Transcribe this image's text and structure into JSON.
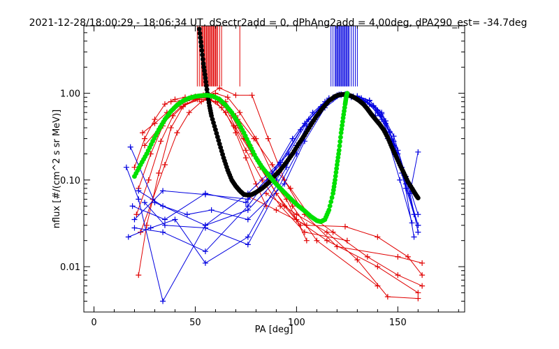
{
  "chart_data": {
    "type": "scatter",
    "title": "2021-12-28/18:00:29 - 18:06:34 UT, dSectr2add = 0, dPhAng2add = 4.00deg, dPA290_est= -34.7deg",
    "xlabel": "PA [deg]",
    "ylabel": "nflux [#/(cm^2 s sr MeV)]",
    "xlim": [
      -5,
      183
    ],
    "ylim": [
      0.003,
      6.0
    ],
    "yscale": "log",
    "x_ticks": [
      0,
      50,
      100,
      150
    ],
    "y_ticks": [
      0.01,
      0.1,
      1.0
    ],
    "y_tick_labels": [
      "0.01",
      "0.10",
      "1.00"
    ],
    "colors": {
      "red": "#e00000",
      "blue": "#0000e0",
      "black": "#000000",
      "green": "#00e000"
    },
    "vertical_markers": [
      {
        "color": "red",
        "x": [
          51,
          52,
          53,
          53.5,
          54,
          54.5,
          55,
          55.5,
          56,
          56.5,
          57,
          57.5,
          58,
          58.5,
          59,
          59.5,
          60,
          60.5,
          61,
          62,
          63,
          72
        ],
        "y_low": 1.2,
        "y_high": 6.0
      },
      {
        "color": "blue",
        "x": [
          117,
          118,
          119,
          119.5,
          120,
          120.5,
          121,
          121.5,
          122,
          122.5,
          123,
          123.5,
          124,
          124.5,
          125,
          125.5,
          126,
          127,
          128,
          129,
          130
        ],
        "y_low": 1.2,
        "y_high": 6.0
      }
    ],
    "series": [
      {
        "color": "black",
        "marker": "dot",
        "x": [
          52,
          53,
          54,
          55,
          56,
          57,
          58,
          60,
          62,
          64,
          66,
          68,
          70,
          72,
          74,
          76,
          78,
          80,
          83,
          86,
          89,
          92,
          95,
          98,
          101,
          104,
          107,
          110,
          113,
          116,
          119,
          121,
          123,
          125,
          127,
          129,
          131,
          133,
          135,
          137,
          139,
          141,
          143,
          145,
          147,
          149,
          151,
          153,
          155,
          157,
          158,
          159,
          160
        ],
        "y": [
          5.5,
          3.5,
          2.2,
          1.5,
          1.0,
          0.72,
          0.55,
          0.38,
          0.26,
          0.18,
          0.13,
          0.1,
          0.085,
          0.075,
          0.068,
          0.067,
          0.068,
          0.072,
          0.08,
          0.092,
          0.11,
          0.13,
          0.16,
          0.2,
          0.26,
          0.33,
          0.43,
          0.55,
          0.68,
          0.82,
          0.92,
          0.96,
          0.97,
          0.96,
          0.93,
          0.88,
          0.82,
          0.75,
          0.66,
          0.57,
          0.5,
          0.44,
          0.38,
          0.31,
          0.24,
          0.19,
          0.15,
          0.12,
          0.095,
          0.08,
          0.073,
          0.067,
          0.062
        ]
      },
      {
        "color": "green",
        "marker": "dot",
        "x": [
          20,
          23,
          26,
          29,
          32,
          35,
          38,
          41,
          44,
          47,
          50,
          53,
          56,
          59,
          62,
          65,
          68,
          71,
          74,
          77,
          80,
          83,
          86,
          89,
          92,
          95,
          98,
          101,
          104,
          107,
          110,
          112,
          114,
          116,
          118,
          119,
          120,
          121,
          122,
          123,
          124,
          124.5,
          125
        ],
        "y": [
          0.11,
          0.15,
          0.2,
          0.28,
          0.38,
          0.5,
          0.62,
          0.73,
          0.82,
          0.88,
          0.92,
          0.94,
          0.95,
          0.92,
          0.85,
          0.73,
          0.6,
          0.47,
          0.35,
          0.25,
          0.18,
          0.14,
          0.115,
          0.095,
          0.08,
          0.068,
          0.058,
          0.05,
          0.044,
          0.038,
          0.034,
          0.033,
          0.035,
          0.045,
          0.07,
          0.1,
          0.15,
          0.22,
          0.35,
          0.52,
          0.75,
          0.9,
          1.0
        ]
      },
      {
        "color": "red",
        "marker": "plus",
        "x": [
          20,
          25,
          30,
          35,
          40,
          45,
          50,
          55,
          60,
          65,
          70,
          75,
          80,
          85
        ],
        "y": [
          0.14,
          0.3,
          0.5,
          0.75,
          0.85,
          0.9,
          0.92,
          0.88,
          0.8,
          0.6,
          0.35,
          0.18,
          0.09,
          0.05
        ]
      },
      {
        "color": "red",
        "marker": "plus",
        "x": [
          22,
          28,
          34,
          40,
          46,
          52,
          58,
          64,
          70,
          78,
          86,
          94,
          102
        ],
        "y": [
          0.08,
          0.2,
          0.42,
          0.68,
          0.82,
          0.88,
          0.9,
          0.75,
          0.4,
          0.2,
          0.1,
          0.05,
          0.03
        ]
      },
      {
        "color": "red",
        "marker": "plus",
        "x": [
          21,
          27,
          33,
          39,
          45,
          51,
          57,
          63,
          69,
          75,
          83,
          92,
          104,
          125
        ],
        "y": [
          0.04,
          0.1,
          0.28,
          0.55,
          0.75,
          0.85,
          0.85,
          0.68,
          0.42,
          0.22,
          0.1,
          0.05,
          0.025,
          0.02
        ]
      },
      {
        "color": "red",
        "marker": "plus",
        "x": [
          23,
          29,
          35,
          41,
          47,
          53,
          59,
          65,
          71,
          77,
          85,
          95,
          105
        ],
        "y": [
          0.025,
          0.06,
          0.15,
          0.35,
          0.6,
          0.8,
          0.92,
          0.8,
          0.5,
          0.25,
          0.12,
          0.06,
          0.02
        ]
      },
      {
        "color": "red",
        "marker": "plus",
        "x": [
          24,
          30,
          36,
          42,
          48,
          54,
          60,
          66,
          72,
          80,
          88,
          98,
          110,
          140
        ],
        "y": [
          0.35,
          0.45,
          0.6,
          0.78,
          0.9,
          0.95,
          1.0,
          0.9,
          0.6,
          0.3,
          0.12,
          0.05,
          0.02,
          0.006
        ]
      },
      {
        "color": "red",
        "marker": "plus",
        "x": [
          22,
          26,
          32,
          38,
          44,
          50,
          56,
          62,
          68,
          74,
          82,
          90,
          100,
          115,
          140,
          160
        ],
        "y": [
          0.008,
          0.03,
          0.12,
          0.4,
          0.7,
          0.86,
          0.9,
          0.85,
          0.55,
          0.3,
          0.14,
          0.07,
          0.035,
          0.02,
          0.01,
          0.005
        ]
      },
      {
        "color": "red",
        "marker": "plus",
        "x": [
          38,
          44,
          50,
          56,
          62,
          70,
          78,
          86,
          94,
          104,
          120,
          150,
          162
        ],
        "y": [
          0.8,
          0.82,
          0.88,
          0.95,
          1.15,
          0.95,
          0.95,
          0.3,
          0.1,
          0.04,
          0.017,
          0.013,
          0.011
        ]
      },
      {
        "color": "red",
        "marker": "plus",
        "x": [
          25,
          34,
          43,
          52,
          61,
          70,
          79,
          88,
          97,
          106,
          118,
          135,
          150,
          162
        ],
        "y": [
          0.25,
          0.45,
          0.7,
          0.85,
          0.8,
          0.55,
          0.3,
          0.15,
          0.08,
          0.04,
          0.025,
          0.013,
          0.008,
          0.006
        ]
      },
      {
        "color": "red",
        "marker": "plus",
        "x": [
          76,
          90,
          105,
          124,
          140,
          155,
          162
        ],
        "y": [
          0.065,
          0.045,
          0.03,
          0.029,
          0.022,
          0.013,
          0.008
        ]
      },
      {
        "color": "red",
        "marker": "plus",
        "x": [
          85,
          100,
          115,
          130,
          145,
          160
        ],
        "y": [
          0.07,
          0.04,
          0.025,
          0.012,
          0.0045,
          0.0043
        ]
      },
      {
        "color": "blue",
        "marker": "plus",
        "x": [
          16,
          22,
          34,
          55,
          76,
          96,
          106,
          114,
          120,
          126,
          132,
          138,
          144,
          150,
          156,
          160
        ],
        "y": [
          0.14,
          0.06,
          0.004,
          0.03,
          0.07,
          0.2,
          0.5,
          0.8,
          0.95,
          0.95,
          0.85,
          0.7,
          0.45,
          0.22,
          0.07,
          0.025
        ]
      },
      {
        "color": "blue",
        "marker": "plus",
        "x": [
          18,
          30,
          55,
          76,
          90,
          100,
          110,
          118,
          124,
          130,
          136,
          142,
          148,
          154,
          160
        ],
        "y": [
          0.24,
          0.055,
          0.03,
          0.045,
          0.1,
          0.25,
          0.55,
          0.85,
          0.95,
          0.9,
          0.75,
          0.5,
          0.25,
          0.08,
          0.03
        ]
      },
      {
        "color": "blue",
        "marker": "plus",
        "x": [
          19,
          35,
          55,
          75,
          88,
          98,
          108,
          116,
          122,
          128,
          134,
          140,
          146,
          152,
          158
        ],
        "y": [
          0.05,
          0.035,
          0.07,
          0.055,
          0.12,
          0.3,
          0.6,
          0.88,
          0.98,
          0.92,
          0.8,
          0.6,
          0.35,
          0.12,
          0.04
        ]
      },
      {
        "color": "blue",
        "marker": "plus",
        "x": [
          20,
          34,
          55,
          76,
          92,
          102,
          112,
          120,
          126,
          132,
          138,
          144,
          150,
          156,
          160
        ],
        "y": [
          0.028,
          0.025,
          0.015,
          0.05,
          0.16,
          0.38,
          0.7,
          0.92,
          0.96,
          0.88,
          0.72,
          0.48,
          0.2,
          0.07,
          0.21
        ]
      },
      {
        "color": "blue",
        "marker": "plus",
        "x": [
          17,
          28,
          40,
          55,
          76,
          95,
          105,
          115,
          121,
          127,
          133,
          139,
          145,
          151,
          157
        ],
        "y": [
          0.022,
          0.028,
          0.035,
          0.011,
          0.022,
          0.14,
          0.42,
          0.8,
          0.97,
          0.9,
          0.78,
          0.55,
          0.3,
          0.1,
          0.032
        ]
      },
      {
        "color": "blue",
        "marker": "plus",
        "x": [
          22,
          34,
          46,
          58,
          76,
          94,
          104,
          114,
          122,
          128,
          134,
          140,
          146,
          152,
          158
        ],
        "y": [
          0.075,
          0.05,
          0.04,
          0.045,
          0.035,
          0.09,
          0.28,
          0.68,
          0.95,
          0.92,
          0.82,
          0.64,
          0.36,
          0.14,
          0.022
        ]
      },
      {
        "color": "blue",
        "marker": "plus",
        "x": [
          20,
          34,
          55,
          76,
          92,
          104,
          116,
          124,
          130,
          136,
          142,
          148,
          154,
          160
        ],
        "y": [
          0.035,
          0.075,
          0.068,
          0.06,
          0.15,
          0.45,
          0.85,
          0.98,
          0.93,
          0.82,
          0.6,
          0.32,
          0.11,
          0.04
        ]
      },
      {
        "color": "blue",
        "marker": "plus",
        "x": [
          25,
          35,
          55,
          76,
          100,
          110,
          118,
          124,
          130,
          136,
          142,
          148,
          154,
          160
        ],
        "y": [
          0.055,
          0.03,
          0.028,
          0.018,
          0.2,
          0.55,
          0.9,
          0.97,
          0.93,
          0.83,
          0.58,
          0.28,
          0.09,
          0.03
        ]
      }
    ]
  }
}
